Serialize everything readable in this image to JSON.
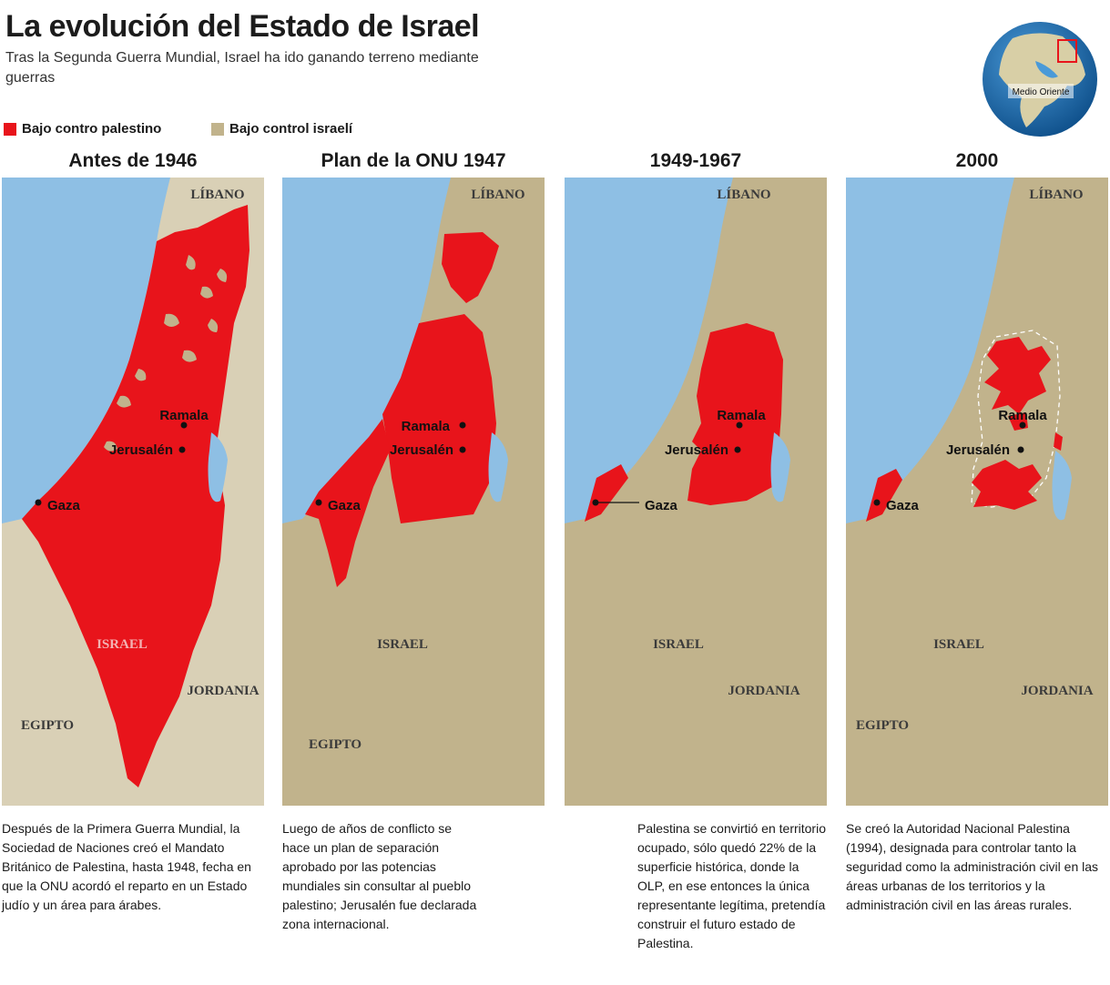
{
  "title": "La evolución del Estado de Israel",
  "subtitle": "Tras la Segunda Guerra Mundial, Israel ha ido ganando terreno mediante guerras",
  "legend": [
    {
      "label": "Bajo contro palestino",
      "color": "#e8141b"
    },
    {
      "label": "Bajo control israelí",
      "color": "#c1b38c"
    }
  ],
  "globe": {
    "label": "Medio Oriente"
  },
  "colors": {
    "palestinian": "#e8141b",
    "israeli": "#c1b38c",
    "sea": "#8ebfe4",
    "land": "#d9d0b6"
  },
  "map_labels": {
    "lebanon": "LÍBANO",
    "israel": "ISRAEL",
    "jordan": "JORDANIA",
    "egypt": "EGIPTO"
  },
  "cities": {
    "ramala": "Ramala",
    "jerusalem": "Jerusalén",
    "gaza": "Gaza"
  },
  "panels": [
    {
      "title": "Antes de 1946",
      "text": "Después de la Primera Guerra Mundial, la Sociedad de Naciones creó el Mandato Británico de Palestina, hasta 1948, fecha en que la ONU acordó el reparto en un Estado judío y un área para árabes."
    },
    {
      "title": "Plan de la ONU 1947",
      "text": "Luego de años de conflicto se hace un plan de separación aprobado por las potencias mundiales sin consultar al pueblo palestino; Jerusalén fue declarada zona internacional."
    },
    {
      "title": "1949-1967",
      "text": "Palestina se convirtió en territorio ocupado, sólo quedó 22% de la superficie histórica, donde la OLP, en ese entonces la única representante legítima, pretendía construir el futuro estado de Palestina."
    },
    {
      "title": "2000",
      "text": "Se creó la Autoridad Nacional Palestina (1994), designada para controlar tanto la seguridad como la administración civil en las áreas urbanas de los territorios y la administración civil en las áreas rurales."
    }
  ]
}
